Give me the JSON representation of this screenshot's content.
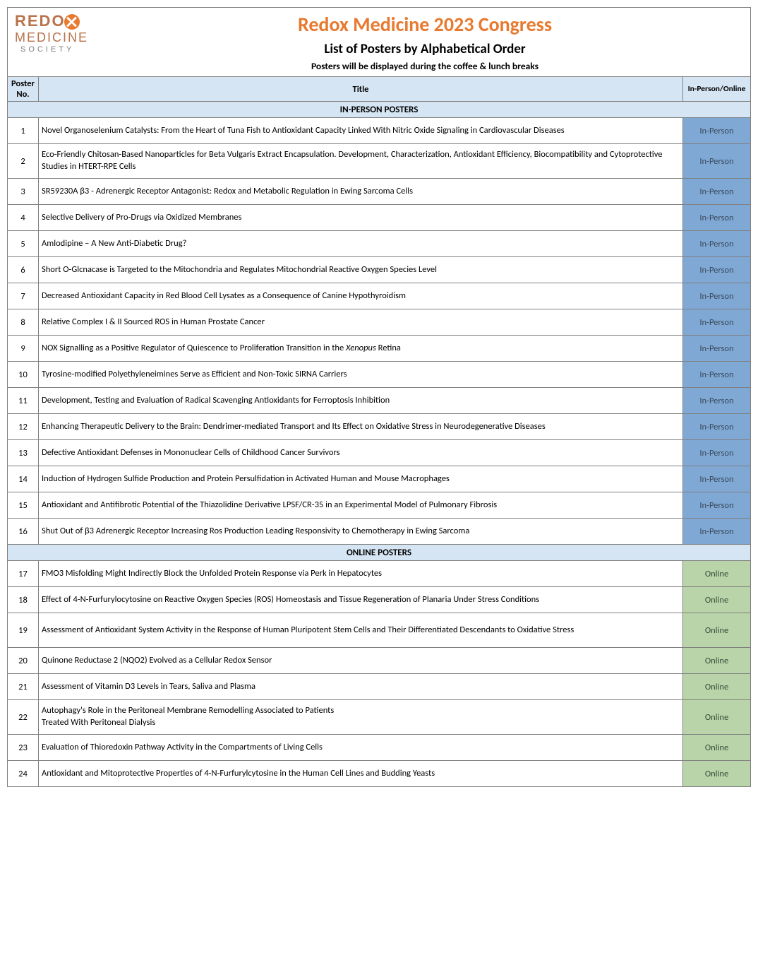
{
  "logo": {
    "line1_redo": "REDO",
    "line1_x": "X",
    "line2": "MEDICINE",
    "line3": "SOCIETY"
  },
  "header": {
    "main_title": "Redox Medicine 2023 Congress",
    "sub_title": "List of Posters by Alphabetical Order",
    "note": "Posters will be displayed during the coffee & lunch breaks"
  },
  "columns": {
    "no": "Poster No.",
    "title": "Title",
    "mode": "In-Person/Online"
  },
  "colors": {
    "header_bg": "#d6e5f3",
    "inperson_bg": "#7fa8d4",
    "online_bg": "#b8d4a8",
    "title_color": "#e8792e",
    "border": "#808080"
  },
  "sections": [
    {
      "label": "IN-PERSON POSTERS",
      "mode_label": "In-Person",
      "mode_class": "mode-inperson",
      "rows": [
        {
          "no": "1",
          "title": "Novel Organoselenium Catalysts: From the Heart of Tuna Fish to Antioxidant Capacity Linked With Nitric Oxide Signaling in Cardiovascular Diseases"
        },
        {
          "no": "2",
          "title": "Eco-Friendly Chitosan-Based Nanoparticles for Beta Vulgaris Extract Encapsulation. Development, Characterization, Antioxidant Efficiency, Biocompatibility and Cytoprotective Studies in HTERT-RPE Cells",
          "tall": true
        },
        {
          "no": "3",
          "title": "SR59230A β3 - Adrenergic Receptor Antagonist: Redox and Metabolic Regulation in Ewing Sarcoma Cells"
        },
        {
          "no": "4",
          "title": "Selective Delivery of Pro-Drugs via Oxidized Membranes"
        },
        {
          "no": "5",
          "title": "Amlodipine – A New Anti-Diabetic Drug?"
        },
        {
          "no": "6",
          "title": "Short O-Glcnacase is Targeted to the Mitochondria and Regulates Mitochondrial Reactive Oxygen Species Level"
        },
        {
          "no": "7",
          "title": "Decreased Antioxidant Capacity in Red Blood Cell Lysates as a Consequence of Canine Hypothyroidism"
        },
        {
          "no": "8",
          "title": "Relative Complex I & II Sourced ROS in Human Prostate Cancer"
        },
        {
          "no": "9",
          "title_html": "NOX Signalling as a Positive Regulator of Quiescence to Proliferation Transition in the <i>Xenopus</i> Retina"
        },
        {
          "no": "10",
          "title": "Tyrosine-modified Polyethyleneimines Serve as Efficient and Non-Toxic SIRNA Carriers"
        },
        {
          "no": "11",
          "title": "Development, Testing and Evaluation of Radical Scavenging Antioxidants for Ferroptosis Inhibition"
        },
        {
          "no": "12",
          "title": "Enhancing Therapeutic Delivery to the Brain: Dendrimer-mediated Transport and Its Effect on Oxidative Stress in Neurodegenerative Diseases"
        },
        {
          "no": "13",
          "title": "Defective Antioxidant Defenses in Mononuclear Cells of Childhood Cancer Survivors"
        },
        {
          "no": "14",
          "title": "Induction of Hydrogen Sulfide Production and Protein Persulfidation in Activated Human and Mouse Macrophages"
        },
        {
          "no": "15",
          "title": "Antioxidant and Antifibrotic Potential of the Thiazolidine Derivative LPSF/CR-35 in an Experimental Model of Pulmonary Fibrosis"
        },
        {
          "no": "16",
          "title": "Shut Out of β3 Adrenergic Receptor Increasing Ros Production Leading Responsivity to Chemotherapy in Ewing Sarcoma"
        }
      ]
    },
    {
      "label": "ONLINE POSTERS",
      "mode_label": "Online",
      "mode_class": "mode-online",
      "rows": [
        {
          "no": "17",
          "title": "FMO3 Misfolding Might Indirectly Block the Unfolded Protein Response via Perk in Hepatocytes"
        },
        {
          "no": "18",
          "title": "Effect of 4-N-Furfurylocytosine on Reactive Oxygen Species (ROS) Homeostasis and Tissue Regeneration of Planaria Under Stress Conditions"
        },
        {
          "no": "19",
          "title": "Assessment of Antioxidant System Activity in the Response of Human Pluripotent Stem Cells and Their Differentiated Descendants to Oxidative Stress",
          "tall": true
        },
        {
          "no": "20",
          "title": "Quinone Reductase 2 (NQO2) Evolved as a Cellular Redox Sensor"
        },
        {
          "no": "21",
          "title": "Assessment of Vitamin D3 Levels in Tears, Saliva and Plasma"
        },
        {
          "no": "22",
          "title_html": "Autophagy's Role in the Peritoneal Membrane Remodelling Associated to Patients<br>Treated With Peritoneal Dialysis",
          "tall": true
        },
        {
          "no": "23",
          "title": "Evaluation of Thioredoxin Pathway Activity in the Compartments of Living Cells"
        },
        {
          "no": "24",
          "title": "Antioxidant and Mitoprotective Properties of 4-N-Furfurylcytosine in the Human Cell Lines and Budding Yeasts"
        }
      ]
    }
  ]
}
